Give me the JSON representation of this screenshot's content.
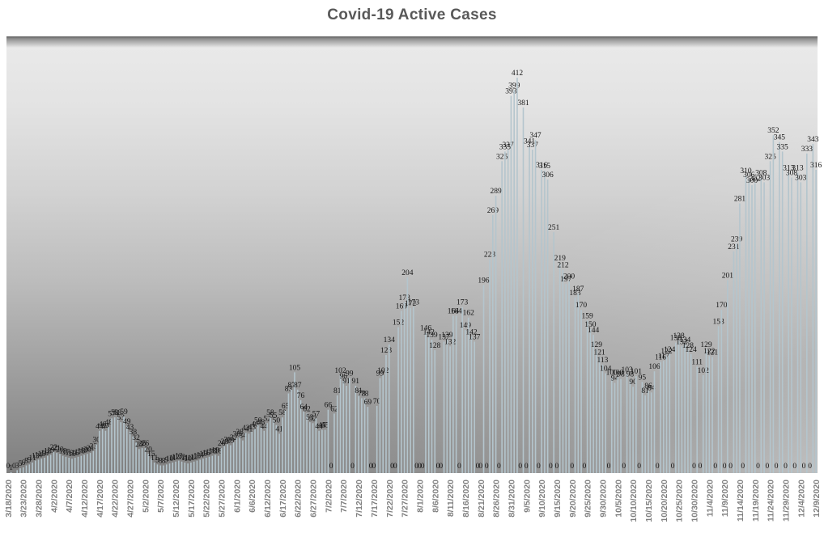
{
  "chart_data": {
    "type": "bar",
    "title": "Covid-19 Active Cases",
    "xlabel": "",
    "ylabel": "",
    "legend": "none",
    "gridlines": false,
    "y_axis_visible": false,
    "ylim": [
      0,
      455
    ],
    "tick_interval": 5,
    "bar_color": "#b4c5cd",
    "value_label_color": "#141414",
    "axis_label_color": "#7f7f7f",
    "title_color": "#595959",
    "plot_bg_top": "#e9e9e9",
    "plot_bg_bottom": "#7f7f7f",
    "x_tick_labels": [
      "3/18/2020",
      "3/23/2020",
      "3/28/2020",
      "4/2/2020",
      "4/7/2020",
      "4/12/2020",
      "4/17/2020",
      "4/22/2020",
      "4/27/2020",
      "5/2/2020",
      "5/7/2020",
      "5/12/2020",
      "5/17/2020",
      "5/22/2020",
      "5/27/2020",
      "6/1/2020",
      "6/6/2020",
      "6/12/2020",
      "6/17/2020",
      "6/22/2020",
      "6/27/2020",
      "7/2/2020",
      "7/7/2020",
      "7/12/2020",
      "7/17/2020",
      "7/22/2020",
      "7/27/2020",
      "8/1/2020",
      "8/6/2020",
      "8/11/2020",
      "8/16/2020",
      "8/21/2020",
      "8/26/2020",
      "8/31/2020",
      "9/5/2020",
      "9/10/2020",
      "9/15/2020",
      "9/20/2020",
      "9/25/2020",
      "9/30/2020",
      "10/5/2020",
      "10/10/2020",
      "10/15/2020",
      "10/20/2020",
      "10/25/2020",
      "10/30/2020",
      "11/4/2020",
      "11/9/2020",
      "11/14/2020",
      "11/19/2020",
      "11/24/2020",
      "11/29/2020",
      "12/4/2020",
      "12/9/2020"
    ],
    "values": [
      0,
      1,
      0,
      3,
      5,
      6,
      8,
      9,
      11,
      13,
      14,
      15,
      16,
      18,
      19,
      22,
      21,
      20,
      18,
      17,
      16,
      15,
      16,
      17,
      18,
      19,
      20,
      21,
      23,
      30,
      44,
      46,
      44,
      48,
      57,
      58,
      58,
      53,
      59,
      49,
      43,
      38,
      32,
      25,
      26,
      26,
      20,
      15,
      11,
      9,
      8,
      8,
      9,
      10,
      11,
      12,
      13,
      12,
      11,
      10,
      11,
      12,
      13,
      14,
      15,
      16,
      17,
      18,
      19,
      18,
      26,
      28,
      30,
      29,
      32,
      36,
      38,
      34,
      42,
      41,
      43,
      46,
      50,
      48,
      44,
      52,
      58,
      55,
      50,
      41,
      58,
      65,
      83,
      87,
      105,
      87,
      76,
      64,
      62,
      53,
      52,
      57,
      44,
      45,
      45,
      66,
      0,
      62,
      81,
      102,
      96,
      91,
      99,
      0,
      91,
      81,
      78,
      78,
      69,
      0,
      0,
      70,
      99,
      102,
      123,
      134,
      0,
      0,
      152,
      169,
      178,
      204,
      172,
      173,
      0,
      0,
      0,
      146,
      142,
      139,
      128,
      0,
      0,
      137,
      139,
      132,
      164,
      164,
      0,
      173,
      149,
      162,
      142,
      137,
      0,
      0,
      196,
      0,
      223,
      269,
      289,
      0,
      325,
      335,
      337,
      393,
      399,
      412,
      0,
      381,
      0,
      341,
      337,
      347,
      0,
      316,
      315,
      306,
      0,
      251,
      0,
      219,
      212,
      197,
      200,
      0,
      183,
      187,
      170,
      0,
      159,
      150,
      144,
      129,
      121,
      113,
      104,
      0,
      100,
      94,
      100,
      98,
      0,
      103,
      98,
      90,
      101,
      0,
      95,
      81,
      86,
      84,
      106,
      0,
      116,
      117,
      122,
      124,
      0,
      136,
      138,
      132,
      134,
      128,
      124,
      0,
      111,
      0,
      102,
      129,
      122,
      121,
      0,
      153,
      170,
      0,
      201,
      0,
      231,
      239,
      281,
      0,
      310,
      306,
      300,
      302,
      0,
      308,
      303,
      0,
      325,
      352,
      0,
      345,
      335,
      0,
      313,
      308,
      0,
      313,
      303,
      0,
      333,
      0,
      343,
      316
    ]
  }
}
